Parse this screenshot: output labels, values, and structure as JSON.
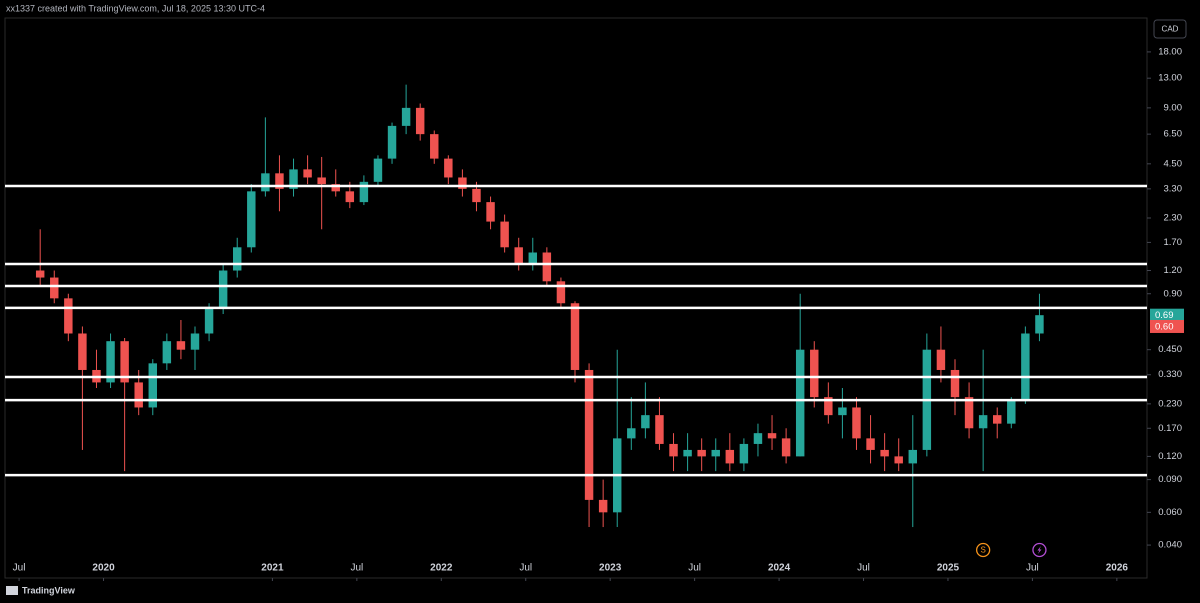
{
  "header": "xx1337 created with TradingView.com, Jul 18, 2025 13:30 UTC-4",
  "footer": "TradingView",
  "chart_data": {
    "type": "candlestick",
    "currency": "CAD",
    "log_scale": true,
    "up_color": "#26a69a",
    "down_color": "#ef5350",
    "xlim": [
      "2019-06",
      "2026-03"
    ],
    "xticks": [
      {
        "value": "2019-07",
        "label": "Jul"
      },
      {
        "value": "2020-01",
        "label": "2020"
      },
      {
        "value": "2021-01",
        "label": "2021"
      },
      {
        "value": "2021-07",
        "label": "Jul"
      },
      {
        "value": "2022-01",
        "label": "2022"
      },
      {
        "value": "2022-07",
        "label": "Jul"
      },
      {
        "value": "2023-01",
        "label": "2023"
      },
      {
        "value": "2023-07",
        "label": "Jul"
      },
      {
        "value": "2024-01",
        "label": "2024"
      },
      {
        "value": "2024-07",
        "label": "Jul"
      },
      {
        "value": "2025-01",
        "label": "2025"
      },
      {
        "value": "2025-07",
        "label": "Jul"
      },
      {
        "value": "2026-01",
        "label": "2026"
      }
    ],
    "ylim": [
      0.0266,
      27.4
    ],
    "yticks": [
      {
        "value": 18,
        "label": "18.00"
      },
      {
        "value": 13,
        "label": "13.00"
      },
      {
        "value": 9,
        "label": "9.00"
      },
      {
        "value": 6.5,
        "label": "6.50"
      },
      {
        "value": 4.5,
        "label": "4.50"
      },
      {
        "value": 3.3,
        "label": "3.30"
      },
      {
        "value": 2.3,
        "label": "2.30"
      },
      {
        "value": 1.7,
        "label": "1.70"
      },
      {
        "value": 1.2,
        "label": "1.20"
      },
      {
        "value": 0.9,
        "label": "0.90"
      },
      {
        "value": 0.45,
        "label": "0.450"
      },
      {
        "value": 0.33,
        "label": "0.330"
      },
      {
        "value": 0.23,
        "label": "0.230"
      },
      {
        "value": 0.17,
        "label": "0.170"
      },
      {
        "value": 0.12,
        "label": "0.120"
      },
      {
        "value": 0.09,
        "label": "0.090"
      },
      {
        "value": 0.06,
        "label": "0.060"
      },
      {
        "value": 0.04,
        "label": "0.040"
      }
    ],
    "price_labels": [
      {
        "value": 0.69,
        "color": "#26a69a"
      },
      {
        "value": 0.6,
        "label": "0.60",
        "color": "#ef5350"
      }
    ],
    "hlines": [
      3.42,
      1.3,
      0.99,
      0.755,
      0.321,
      0.241,
      0.0952
    ],
    "hline_color": "#ffffff",
    "event_markers": [
      {
        "x": "2025-03",
        "label": "S",
        "color": "#f7931a"
      },
      {
        "x": "2025-07",
        "color": "#b44fd6"
      }
    ],
    "x": [
      "2019-08",
      "2019-09",
      "2019-10",
      "2019-11",
      "2019-12",
      "2020-01",
      "2020-02",
      "2020-03",
      "2020-04",
      "2020-05",
      "2020-06",
      "2020-07",
      "2020-08",
      "2020-09",
      "2020-10",
      "2020-11",
      "2020-12",
      "2021-01",
      "2021-02",
      "2021-03",
      "2021-04",
      "2021-05",
      "2021-06",
      "2021-07",
      "2021-08",
      "2021-09",
      "2021-10",
      "2021-11",
      "2021-12",
      "2022-01",
      "2022-02",
      "2022-03",
      "2022-04",
      "2022-05",
      "2022-06",
      "2022-07",
      "2022-08",
      "2022-09",
      "2022-10",
      "2022-11",
      "2022-12",
      "2023-01",
      "2023-02",
      "2023-03",
      "2023-04",
      "2023-05",
      "2023-06",
      "2023-07",
      "2023-08",
      "2023-09",
      "2023-10",
      "2023-11",
      "2023-12",
      "2024-01",
      "2024-02",
      "2024-03",
      "2024-04",
      "2024-05",
      "2024-06",
      "2024-07",
      "2024-08",
      "2024-09",
      "2024-10",
      "2024-11",
      "2024-12",
      "2025-01",
      "2025-02",
      "2025-03",
      "2025-04",
      "2025-05",
      "2025-06",
      "2025-07"
    ],
    "open": [
      1.2,
      1.1,
      0.85,
      0.55,
      0.35,
      0.3,
      0.5,
      0.3,
      0.22,
      0.38,
      0.5,
      0.45,
      0.55,
      0.75,
      1.2,
      1.6,
      3.2,
      4.0,
      3.3,
      4.2,
      3.8,
      3.5,
      3.2,
      2.8,
      3.6,
      4.8,
      7.2,
      9.0,
      6.5,
      4.8,
      3.8,
      3.3,
      2.8,
      2.2,
      1.6,
      1.3,
      1.5,
      1.05,
      0.8,
      0.35,
      0.07,
      0.06,
      0.15,
      0.17,
      0.2,
      0.14,
      0.12,
      0.13,
      0.12,
      0.13,
      0.11,
      0.14,
      0.16,
      0.15,
      0.12,
      0.45,
      0.25,
      0.2,
      0.22,
      0.15,
      0.13,
      0.12,
      0.11,
      0.13,
      0.45,
      0.35,
      0.25,
      0.17,
      0.2,
      0.18,
      0.24,
      0.55
    ],
    "high": [
      2.0,
      1.2,
      0.9,
      0.6,
      0.45,
      0.55,
      0.52,
      0.35,
      0.4,
      0.55,
      0.65,
      0.6,
      0.8,
      1.3,
      1.8,
      3.5,
      8.0,
      5.0,
      4.8,
      5.0,
      4.9,
      4.2,
      3.6,
      3.9,
      5.0,
      7.5,
      12.0,
      9.5,
      6.8,
      5.0,
      4.2,
      3.6,
      3.0,
      2.4,
      1.8,
      1.8,
      1.6,
      1.1,
      0.82,
      0.38,
      0.09,
      0.45,
      0.25,
      0.3,
      0.25,
      0.16,
      0.16,
      0.15,
      0.15,
      0.16,
      0.15,
      0.18,
      0.2,
      0.17,
      0.9,
      0.5,
      0.3,
      0.28,
      0.25,
      0.2,
      0.16,
      0.15,
      0.2,
      0.55,
      0.6,
      0.4,
      0.3,
      0.45,
      0.22,
      0.25,
      0.6,
      0.9
    ],
    "low": [
      1.0,
      0.8,
      0.5,
      0.13,
      0.28,
      0.28,
      0.1,
      0.2,
      0.2,
      0.35,
      0.4,
      0.35,
      0.5,
      0.7,
      1.1,
      1.5,
      3.0,
      2.5,
      3.0,
      3.5,
      2.0,
      3.0,
      2.6,
      2.7,
      3.4,
      4.5,
      6.5,
      6.0,
      4.5,
      3.5,
      3.0,
      2.5,
      2.0,
      1.5,
      1.2,
      1.2,
      1.0,
      0.75,
      0.3,
      0.05,
      0.05,
      0.05,
      0.13,
      0.15,
      0.13,
      0.1,
      0.1,
      0.1,
      0.1,
      0.1,
      0.1,
      0.12,
      0.13,
      0.11,
      0.12,
      0.22,
      0.18,
      0.15,
      0.13,
      0.11,
      0.1,
      0.1,
      0.05,
      0.12,
      0.3,
      0.2,
      0.15,
      0.1,
      0.15,
      0.17,
      0.23,
      0.5
    ],
    "close": [
      1.1,
      0.85,
      0.55,
      0.35,
      0.3,
      0.5,
      0.3,
      0.22,
      0.38,
      0.5,
      0.45,
      0.55,
      0.75,
      1.2,
      1.6,
      3.2,
      4.0,
      3.3,
      4.2,
      3.8,
      3.5,
      3.2,
      2.8,
      3.6,
      4.8,
      7.2,
      9.0,
      6.5,
      4.8,
      3.8,
      3.3,
      2.8,
      2.2,
      1.6,
      1.3,
      1.5,
      1.05,
      0.8,
      0.35,
      0.07,
      0.06,
      0.15,
      0.17,
      0.2,
      0.14,
      0.12,
      0.13,
      0.12,
      0.13,
      0.11,
      0.14,
      0.16,
      0.15,
      0.12,
      0.45,
      0.25,
      0.2,
      0.22,
      0.15,
      0.13,
      0.12,
      0.11,
      0.13,
      0.45,
      0.35,
      0.25,
      0.17,
      0.2,
      0.18,
      0.24,
      0.55,
      0.69
    ]
  }
}
